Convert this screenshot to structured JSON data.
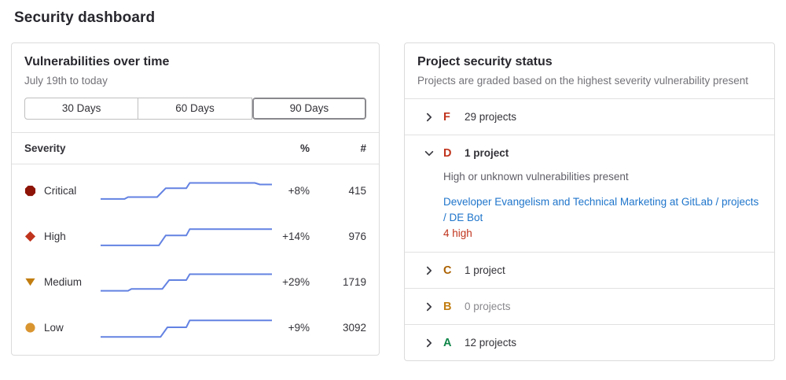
{
  "page": {
    "title": "Security dashboard"
  },
  "colors": {
    "sparkline": "#6382e2",
    "severity_critical": "#8d1407",
    "severity_high": "#c0341d",
    "severity_medium": "#c17d10",
    "severity_low": "#d99530",
    "grade_f": "#c0341d",
    "grade_d": "#c0341d",
    "grade_c": "#ab6100",
    "grade_b": "#c17d10",
    "grade_a": "#108548",
    "link_blue": "#1f75cb",
    "finding_red": "#c0341d"
  },
  "vuln_panel": {
    "title": "Vulnerabilities over time",
    "subtitle": "July 19th to today",
    "range_buttons": [
      {
        "label": "30 Days",
        "selected": false
      },
      {
        "label": "60 Days",
        "selected": false
      },
      {
        "label": "90 Days",
        "selected": true
      }
    ],
    "table": {
      "severity_header": "Severity",
      "percent_header": "%",
      "count_header": "#",
      "rows": [
        {
          "severity": "Critical",
          "icon": "severity-critical-icon",
          "percent_change": "+8%",
          "count": "415"
        },
        {
          "severity": "High",
          "icon": "severity-high-icon",
          "percent_change": "+14%",
          "count": "976"
        },
        {
          "severity": "Medium",
          "icon": "severity-medium-icon",
          "percent_change": "+29%",
          "count": "1719"
        },
        {
          "severity": "Low",
          "icon": "severity-low-icon",
          "percent_change": "+9%",
          "count": "3092"
        }
      ]
    }
  },
  "chart_data": {
    "type": "line",
    "title": "Vulnerabilities over time sparklines",
    "x_range": "July 19th to today (90 days)",
    "legend_position": "none",
    "grid": false,
    "series": [
      {
        "name": "Critical",
        "current_count": 415,
        "percent_change": "+8%",
        "points": [
          [
            0,
            18
          ],
          [
            14,
            18
          ],
          [
            16,
            25
          ],
          [
            33,
            25
          ],
          [
            38,
            58
          ],
          [
            50,
            58
          ],
          [
            52,
            78
          ],
          [
            90,
            78
          ],
          [
            93,
            72
          ],
          [
            100,
            72
          ]
        ]
      },
      {
        "name": "High",
        "current_count": 976,
        "percent_change": "+14%",
        "points": [
          [
            0,
            15
          ],
          [
            34,
            15
          ],
          [
            38,
            52
          ],
          [
            50,
            52
          ],
          [
            52,
            76
          ],
          [
            100,
            76
          ]
        ]
      },
      {
        "name": "Medium",
        "current_count": 1719,
        "percent_change": "+29%",
        "points": [
          [
            0,
            16
          ],
          [
            16,
            16
          ],
          [
            18,
            23
          ],
          [
            36,
            23
          ],
          [
            40,
            56
          ],
          [
            50,
            56
          ],
          [
            52,
            78
          ],
          [
            100,
            78
          ]
        ]
      },
      {
        "name": "Low",
        "current_count": 3092,
        "percent_change": "+9%",
        "points": [
          [
            0,
            14
          ],
          [
            35,
            14
          ],
          [
            39,
            50
          ],
          [
            50,
            50
          ],
          [
            52,
            76
          ],
          [
            100,
            76
          ]
        ]
      }
    ]
  },
  "status_panel": {
    "title": "Project security status",
    "subtitle": "Projects are graded based on the highest severity vulnerability present",
    "grades": [
      {
        "letter": "F",
        "count_label": "29 projects",
        "expanded": false
      },
      {
        "letter": "D",
        "count_label": "1 project",
        "expanded": true,
        "description": "High or unknown vulnerabilities present",
        "project_link": "Developer Evangelism and Technical Marketing at GitLab / projects / DE Bot",
        "finding": "4 high"
      },
      {
        "letter": "C",
        "count_label": "1 project",
        "expanded": false
      },
      {
        "letter": "B",
        "count_label": "0 projects",
        "expanded": false
      },
      {
        "letter": "A",
        "count_label": "12 projects",
        "expanded": false
      }
    ]
  }
}
